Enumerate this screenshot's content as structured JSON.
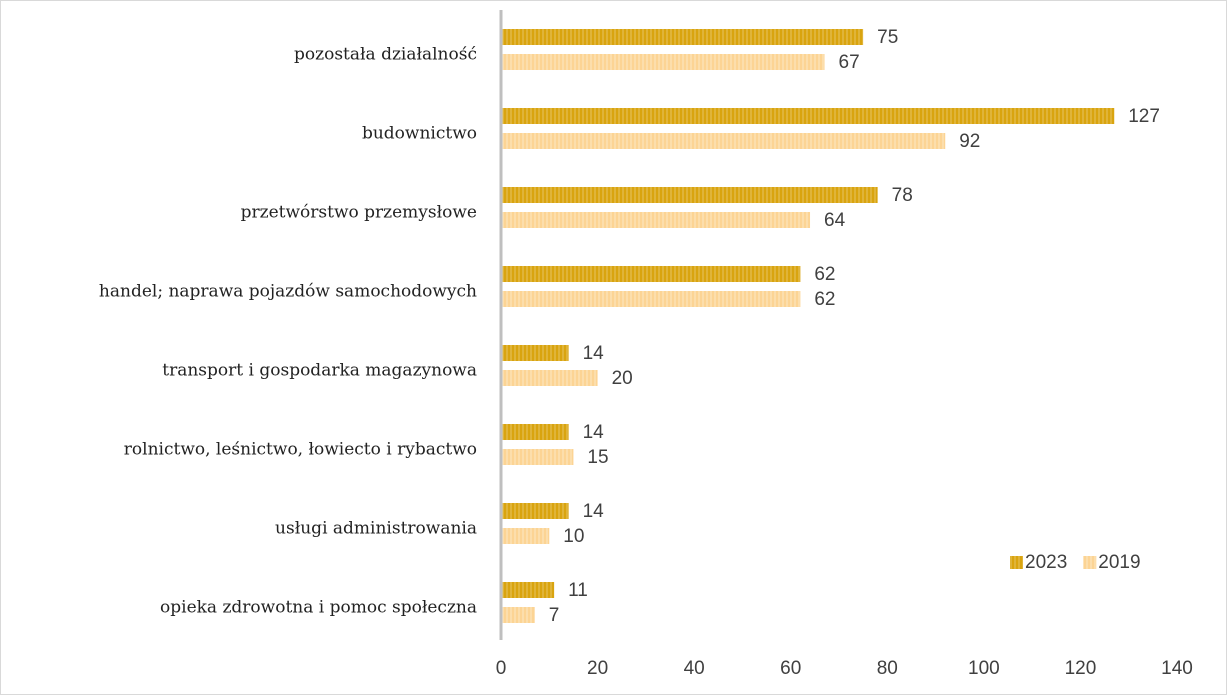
{
  "chart_data": {
    "type": "barh",
    "categories": [
      "pozostała działalność",
      "budownictwo",
      "przetwórstwo przemysłowe",
      "handel; naprawa pojazdów samochodowych",
      "transport i gospodarka magazynowa",
      "rolnictwo, leśnictwo, łowiecto i rybactwo",
      "usługi administrowania",
      "opieka zdrowotna i pomoc społeczna"
    ],
    "series": [
      {
        "name": "2023",
        "color": "#d9a40f",
        "values": [
          75,
          127,
          78,
          62,
          14,
          14,
          14,
          11
        ]
      },
      {
        "name": "2019",
        "color": "#fcd494",
        "values": [
          67,
          92,
          64,
          62,
          20,
          15,
          10,
          7
        ]
      }
    ],
    "xlim": [
      0,
      140
    ],
    "xticks": [
      0,
      20,
      40,
      60,
      80,
      100,
      120,
      140
    ],
    "grid": false,
    "legend": "right"
  }
}
